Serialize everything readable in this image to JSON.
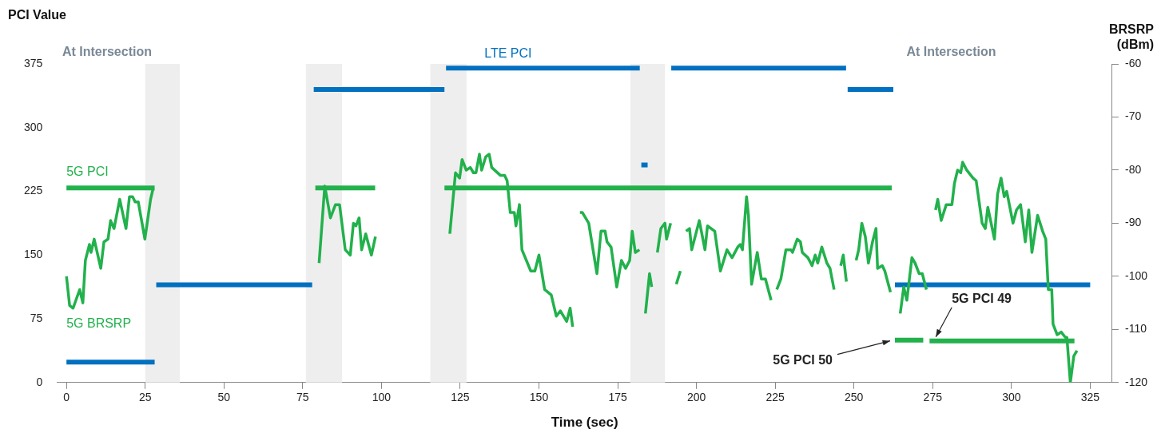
{
  "chart_data": {
    "type": "line",
    "xlabel": "Time (sec)",
    "ylabel": "PCI Value",
    "y2label": "BRSRP (dBm)",
    "xlim": [
      -3,
      332
    ],
    "xticks": [
      0,
      25,
      50,
      75,
      100,
      125,
      150,
      175,
      200,
      225,
      250,
      275,
      300,
      325
    ],
    "ylim": [
      0,
      375
    ],
    "yticks": [
      0,
      75,
      150,
      225,
      300,
      375
    ],
    "y2lim": [
      -120,
      -60
    ],
    "y2ticks": [
      -120,
      -110,
      -100,
      -90,
      -80,
      -70,
      -60
    ],
    "grid": false,
    "legend": false,
    "series": [
      {
        "name": "LTE PCI",
        "color": "#0070c0",
        "x": [
          0,
          28,
          28.2,
          28.5,
          78,
          78.2,
          78.5,
          120,
          120.2,
          120.5,
          182,
          182.2,
          182.5,
          184.5,
          188,
          192,
          247.5,
          247.8,
          248,
          262.5,
          262.8,
          263,
          325
        ],
        "values": [
          24,
          24,
          null,
          115,
          115,
          null,
          345,
          345,
          null,
          370,
          370,
          null,
          256,
          256,
          null,
          370,
          370,
          null,
          345,
          345,
          null,
          115,
          115
        ]
      },
      {
        "name": "5G PCI",
        "color": "#22b14c",
        "x": [
          0,
          28,
          28.5,
          79,
          98,
          99,
          120,
          262,
          262.5,
          263,
          272,
          273,
          274,
          320
        ],
        "values": [
          229,
          229,
          null,
          229,
          229,
          null,
          229,
          229,
          null,
          50,
          50,
          null,
          49,
          49
        ]
      },
      {
        "name": "5G BRSRP",
        "color": "#22b14c",
        "axis": "y2",
        "x": [
          0,
          1.0,
          2.1,
          4.2,
          5.2,
          6.0,
          7.3,
          7.8,
          8.8,
          10.9,
          11.9,
          13.2,
          14.0,
          15.1,
          16.9,
          18.9,
          20.0,
          21.0,
          21.8,
          22.8,
          24.9,
          26.7,
          27.5,
          50,
          80.2,
          82.0,
          83.8,
          85.4,
          86.7,
          88.5,
          90.1,
          91.1,
          91.9,
          92.9,
          93.7,
          95.0,
          96.8,
          98.1,
          110,
          121.7,
          123.5,
          124.8,
          125.6,
          126.9,
          128.2,
          129.2,
          130.0,
          131.1,
          131.8,
          133.1,
          134.2,
          135.0,
          137.8,
          139.1,
          139.9,
          140.9,
          142.2,
          142.7,
          143.8,
          144.6,
          147.4,
          148.7,
          150.0,
          151.8,
          153.9,
          155.5,
          156.8,
          158.8,
          159.9,
          160.7,
          162,
          163.0,
          163.8,
          165.8,
          168.4,
          169.7,
          171.0,
          171.6,
          172.9,
          174.7,
          176.2,
          177.5,
          178.8,
          179.6,
          180.6,
          181.9,
          182.8,
          183.8,
          185.1,
          185.8,
          186.7,
          187.6,
          188.7,
          190.0,
          190.5,
          191.8,
          192.7,
          193.6,
          194.9,
          195.8,
          196.7,
          197.8,
          198.5,
          200.9,
          202.7,
          203.5,
          205.8,
          207.6,
          209.7,
          211.3,
          213.1,
          213.9,
          214.6,
          215.9,
          216.5,
          217.5,
          219.3,
          220.6,
          221.9,
          223.7,
          224.6,
          225.5,
          226.8,
          228.4,
          230.0,
          230.5,
          232.0,
          233.0,
          233.6,
          235.4,
          236.7,
          237.7,
          238.5,
          239.8,
          241.4,
          242.4,
          243.7,
          244.8,
          245.8,
          246.6,
          247.6,
          249,
          250.7,
          251.5,
          252.5,
          253.6,
          254.6,
          255.9,
          257.0,
          257.5,
          259.0,
          259.8,
          261.6,
          263,
          264.7,
          265.8,
          266.8,
          268.4,
          269.4,
          270.7,
          271.7,
          273.0,
          274.5,
          275.9,
          276.6,
          277.7,
          279.3,
          281.1,
          281.9,
          282.9,
          283.9,
          284.5,
          285.8,
          287.8,
          288.8,
          290.7,
          291.7,
          292.5,
          294.6,
          295.6,
          296.7,
          297.7,
          298.5,
          300.5,
          301.6,
          302.9,
          304.4,
          305.5,
          306.5,
          308.3,
          309.9,
          310.9,
          311.7,
          312.8,
          313.2,
          314.5,
          315.8,
          317.1,
          317.6,
          318.7,
          319.8,
          320.8
        ],
        "values": [
          -100,
          -105.5,
          -106,
          -102.5,
          -105,
          -97,
          -94,
          -95.5,
          -93,
          -98.5,
          -93.5,
          -93,
          -89.5,
          -91,
          -85.5,
          -91,
          -85,
          -85,
          -86,
          -86,
          -93,
          -85.5,
          -83.5,
          null,
          -97.5,
          -83,
          -89,
          -86.5,
          -86.5,
          -95,
          -96,
          -90,
          -90.5,
          -89,
          -95,
          -92,
          -96,
          -92.5,
          null,
          -92,
          -80.5,
          -81.5,
          -78,
          -80,
          -79.5,
          -80.5,
          -80.5,
          -77,
          -80,
          -77.5,
          -77,
          -79.5,
          -81,
          -81,
          -82,
          -88,
          -88,
          -90.5,
          -86.5,
          -95,
          -99,
          -99,
          -96,
          -102.5,
          -103.5,
          -107.5,
          -106.5,
          -108.5,
          -106,
          -109.5,
          null,
          -88,
          -88,
          -90,
          -99.5,
          -91.5,
          -91.5,
          -93.5,
          -94.5,
          -102,
          -97,
          -98.5,
          -97,
          -91.5,
          -95.5,
          -95,
          null,
          -107,
          -99.5,
          -102,
          null,
          -95.5,
          -91,
          -90,
          -93,
          -90,
          null,
          -101.5,
          -99,
          null,
          -91.5,
          -91,
          -95,
          -89.5,
          -95,
          -90.5,
          -91.5,
          -99,
          -95,
          -96.5,
          -94.5,
          -94,
          -95,
          -85,
          -88.5,
          -101.5,
          -95.5,
          -100.5,
          -100.5,
          -104.5,
          null,
          -102.5,
          -100.5,
          -95,
          -95,
          -95.5,
          -93,
          -93.5,
          -95.5,
          -96.5,
          -98,
          -96,
          -97.5,
          -94.5,
          -97.5,
          -98.5,
          -102.5,
          null,
          -98,
          -96,
          -101,
          null,
          -97,
          -95,
          -90,
          -92.5,
          -97.5,
          -93.5,
          -91,
          -98.5,
          -98,
          -99,
          -103,
          null,
          -107,
          -102,
          -104.5,
          -96.5,
          -97.5,
          -99.5,
          -99.5,
          -102.5,
          null,
          -87.5,
          -85.5,
          -89.5,
          -86.5,
          -86.5,
          -82.5,
          -80,
          -80.5,
          -78.5,
          -80,
          -81.5,
          -82,
          -90,
          -91,
          -87,
          -93,
          -84.5,
          -81.5,
          -85,
          -84,
          -90,
          -87.5,
          -86.5,
          -93.5,
          -87.5,
          -95.5,
          -88.5,
          -91.5,
          -93,
          -102.5,
          -102.5,
          -109,
          -111,
          -110.5,
          -111.5,
          -111.5,
          -120,
          -115,
          -114
        ]
      }
    ],
    "bands": [
      {
        "axis": "x",
        "from": 25,
        "to": 36,
        "color": "#eeeeee"
      },
      {
        "axis": "x",
        "from": 76,
        "to": 87.5,
        "color": "#eeeeee"
      },
      {
        "axis": "x",
        "from": 115.5,
        "to": 127,
        "color": "#eeeeee"
      },
      {
        "axis": "x",
        "from": 179,
        "to": 190,
        "color": "#eeeeee"
      }
    ],
    "annotations": [
      "At Intersection",
      "At Intersection",
      {
        "text": "5G PCI 50",
        "x": 263,
        "y": 50
      },
      {
        "text": "5G PCI 49",
        "x": 276,
        "y": 49
      }
    ]
  }
}
